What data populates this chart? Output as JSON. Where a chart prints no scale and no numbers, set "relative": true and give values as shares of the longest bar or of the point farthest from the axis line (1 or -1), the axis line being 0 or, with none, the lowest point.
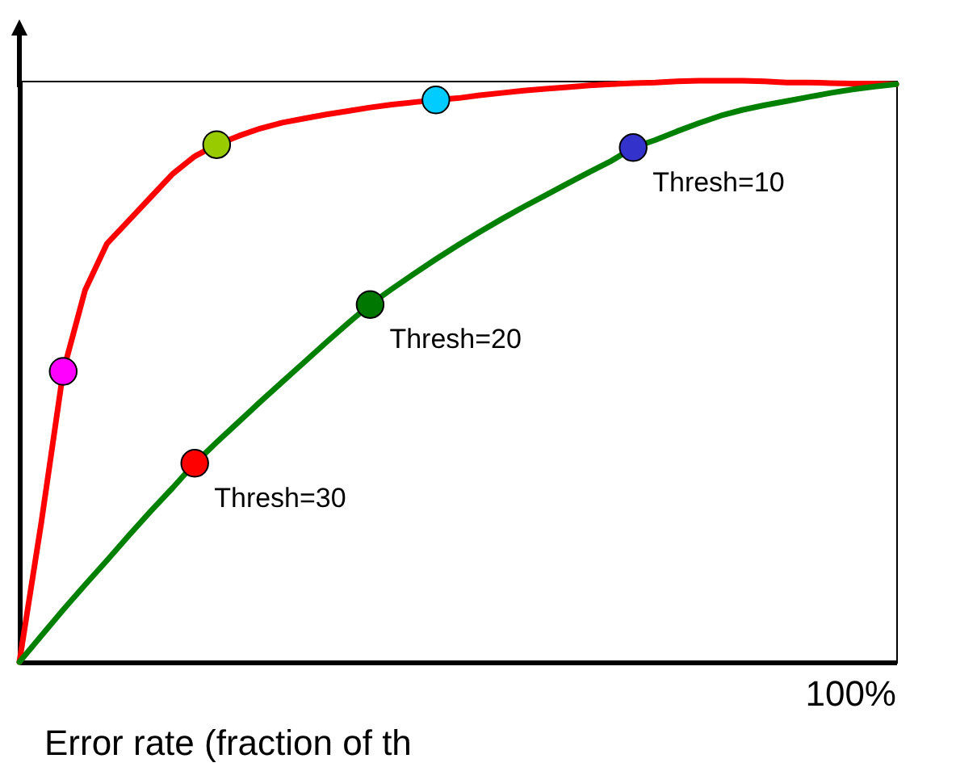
{
  "chart_data": {
    "type": "line",
    "relative": true,
    "xlabel": "Error rate (fraction of th",
    "line_style": "solid",
    "categories": [
      null,
      null,
      null,
      null,
      null,
      null,
      null,
      null,
      null,
      null,
      null,
      null,
      null,
      null,
      null,
      null,
      null,
      null,
      null,
      null,
      null,
      null,
      null,
      null,
      null,
      null,
      null,
      null,
      null,
      null,
      null,
      null,
      null,
      null,
      null,
      null,
      null,
      null,
      null,
      null,
      null
    ],
    "series": [
      {
        "color": "#ff0000",
        "values": [
          0,
          0.24,
          0.5,
          0.64,
          0.72,
          0.76,
          0.8,
          0.84,
          0.87,
          0.89,
          0.905,
          0.918,
          0.928,
          0.935,
          0.942,
          0.948,
          0.954,
          0.959,
          0.963,
          0.967,
          0.97,
          0.975,
          0.979,
          0.983,
          0.986,
          0.989,
          0.992,
          0.994,
          0.996,
          0.997,
          0.999,
          1,
          1,
          1,
          0.999,
          0.997,
          0.997,
          0.996,
          0.995,
          0.995,
          0.994
        ],
        "colors": [
          null,
          null,
          "#ff00ff",
          null,
          null,
          null,
          null,
          null,
          null,
          "#99cc00",
          null,
          null,
          null,
          null,
          null,
          null,
          null,
          null,
          null,
          "#00ccff",
          null,
          null,
          null,
          null,
          null,
          null,
          null,
          null,
          null,
          null,
          null,
          null,
          null,
          null,
          null,
          null,
          null,
          null,
          null,
          null,
          null
        ]
      },
      {
        "color": "#008000",
        "values": [
          0,
          0.045,
          0.09,
          0.133,
          0.175,
          0.218,
          0.26,
          0.3,
          0.342,
          0.378,
          0.413,
          0.448,
          0.482,
          0.516,
          0.55,
          0.583,
          0.615,
          0.642,
          0.668,
          0.693,
          0.717,
          0.74,
          0.762,
          0.783,
          0.803,
          0.823,
          0.843,
          0.862,
          0.885,
          0.898,
          0.913,
          0.927,
          0.94,
          0.95,
          0.958,
          0.965,
          0.972,
          0.979,
          0.985,
          0.99,
          0.994
        ],
        "colors": [
          null,
          null,
          null,
          null,
          null,
          null,
          null,
          null,
          "#ff0000",
          null,
          null,
          null,
          null,
          null,
          null,
          null,
          "#007700",
          null,
          null,
          null,
          null,
          null,
          null,
          null,
          null,
          null,
          null,
          null,
          "#3333cc",
          null,
          null,
          null,
          null,
          null,
          null,
          null,
          null,
          null,
          null,
          null,
          null
        ]
      }
    ],
    "annotations": [
      "Thresh=30",
      "Thresh=20",
      "Thresh=10",
      "100%"
    ]
  }
}
